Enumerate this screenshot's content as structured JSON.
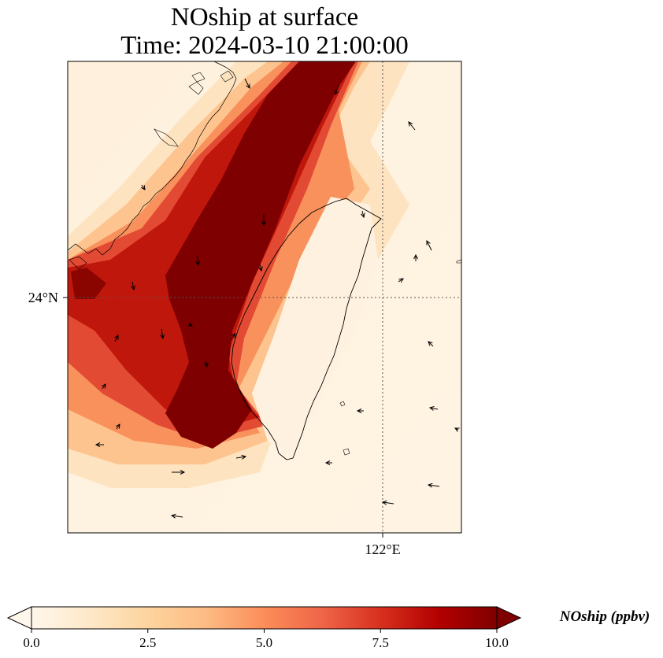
{
  "title": {
    "line1": "NOship at surface",
    "line2": "Time: 2024-03-10 21:00:00"
  },
  "chart_data": {
    "type": "heatmap",
    "variable": "NOship",
    "units": "ppbv",
    "colormap": "OrRd",
    "gridlines": [
      {
        "axis": "lat",
        "value": 24,
        "label": "24°N"
      },
      {
        "axis": "lon",
        "value": 122,
        "label": "122°E"
      }
    ],
    "description_note": "",
    "colorbar": {
      "label": "NOship (ppbv)",
      "min": 0.0,
      "max": 10.0,
      "extend": "both",
      "ticks": [
        0.0,
        2.5,
        5.0,
        7.5,
        10.0
      ],
      "tick_labels": [
        "0.0",
        "2.5",
        "5.0",
        "7.5",
        "10.0"
      ],
      "colors": [
        "#fff7ec",
        "#fee8c8",
        "#fdd49e",
        "#fdbb84",
        "#fc8d59",
        "#ef6548",
        "#d7301f",
        "#b30000",
        "#7f0000"
      ]
    }
  }
}
